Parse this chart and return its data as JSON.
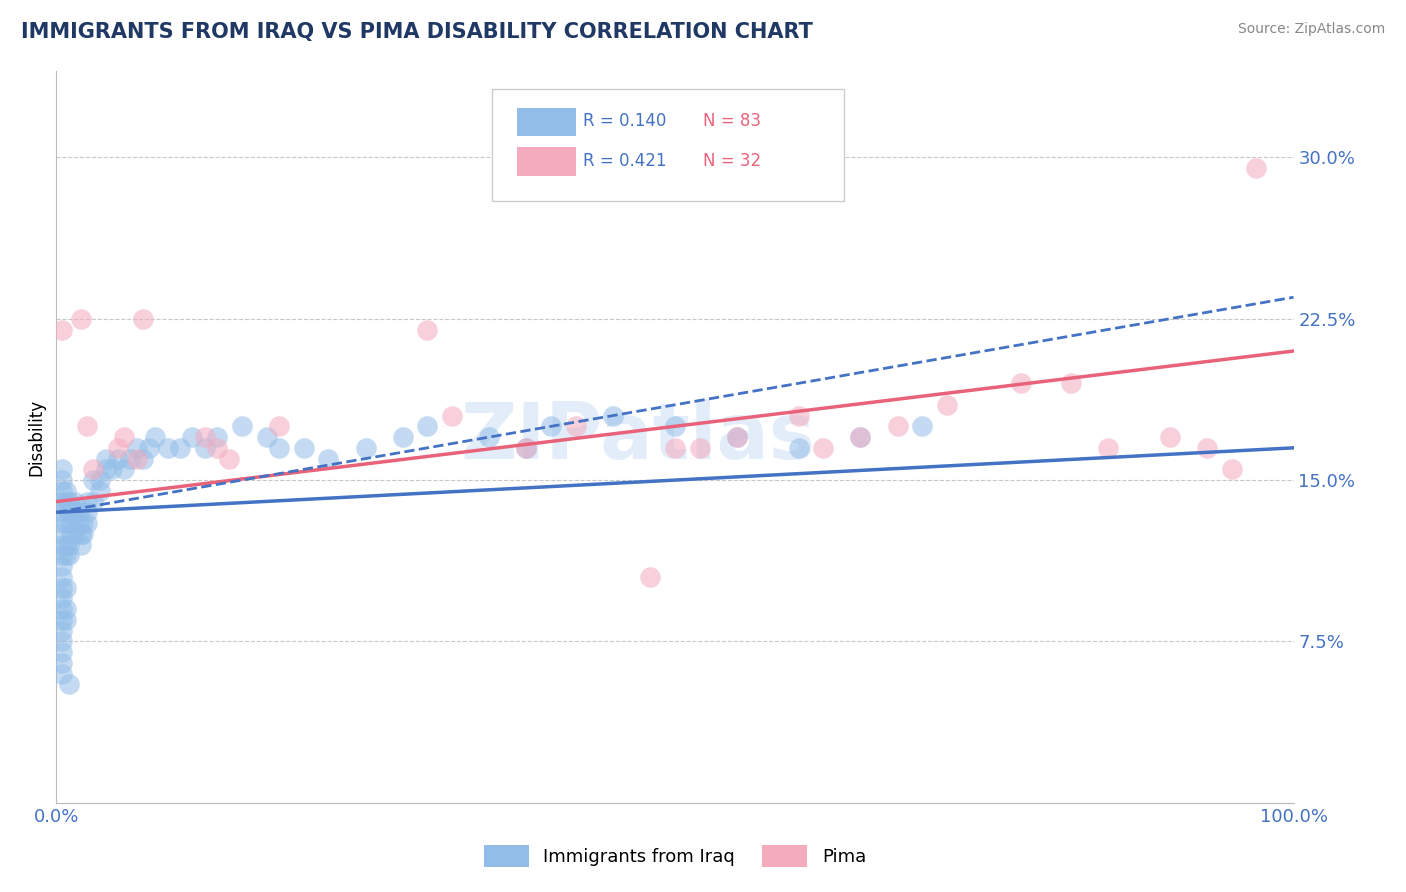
{
  "title": "IMMIGRANTS FROM IRAQ VS PIMA DISABILITY CORRELATION CHART",
  "source": "Source: ZipAtlas.com",
  "ylabel": "Disability",
  "xlim": [
    0.0,
    1.0
  ],
  "ylim": [
    0.0,
    0.34
  ],
  "yticks": [
    0.0,
    0.075,
    0.15,
    0.225,
    0.3
  ],
  "ytick_labels": [
    "",
    "7.5%",
    "15.0%",
    "22.5%",
    "30.0%"
  ],
  "xticks": [
    0.0,
    1.0
  ],
  "xtick_labels": [
    "0.0%",
    "100.0%"
  ],
  "blue_R": "0.140",
  "blue_N": "83",
  "pink_R": "0.421",
  "pink_N": "32",
  "blue_color": "#92BDE8",
  "pink_color": "#F4ABBE",
  "blue_line_color": "#4472C4",
  "pink_line_color": "#E8637A",
  "grid_color": "#C8C8C8",
  "title_color": "#1F3864",
  "axis_label_color": "#4472C4",
  "watermark": "ZIPatlas",
  "blue_scatter_x": [
    0.005,
    0.005,
    0.005,
    0.005,
    0.005,
    0.005,
    0.005,
    0.005,
    0.005,
    0.005,
    0.008,
    0.008,
    0.008,
    0.008,
    0.008,
    0.01,
    0.01,
    0.01,
    0.01,
    0.012,
    0.012,
    0.015,
    0.015,
    0.015,
    0.018,
    0.018,
    0.02,
    0.02,
    0.022,
    0.022,
    0.025,
    0.025,
    0.025,
    0.03,
    0.03,
    0.035,
    0.035,
    0.04,
    0.04,
    0.045,
    0.05,
    0.055,
    0.06,
    0.065,
    0.07,
    0.075,
    0.08,
    0.09,
    0.1,
    0.11,
    0.12,
    0.13,
    0.15,
    0.17,
    0.18,
    0.2,
    0.22,
    0.25,
    0.28,
    0.3,
    0.35,
    0.38,
    0.4,
    0.45,
    0.5,
    0.55,
    0.6,
    0.65,
    0.7,
    0.005,
    0.005,
    0.005,
    0.005,
    0.005,
    0.005,
    0.005,
    0.005,
    0.005,
    0.005,
    0.008,
    0.008,
    0.008,
    0.01
  ],
  "blue_scatter_y": [
    0.125,
    0.13,
    0.135,
    0.14,
    0.145,
    0.15,
    0.155,
    0.12,
    0.115,
    0.11,
    0.13,
    0.14,
    0.145,
    0.12,
    0.115,
    0.135,
    0.14,
    0.12,
    0.115,
    0.125,
    0.13,
    0.14,
    0.135,
    0.125,
    0.13,
    0.135,
    0.125,
    0.12,
    0.13,
    0.125,
    0.14,
    0.135,
    0.13,
    0.14,
    0.15,
    0.145,
    0.15,
    0.155,
    0.16,
    0.155,
    0.16,
    0.155,
    0.16,
    0.165,
    0.16,
    0.165,
    0.17,
    0.165,
    0.165,
    0.17,
    0.165,
    0.17,
    0.175,
    0.17,
    0.165,
    0.165,
    0.16,
    0.165,
    0.17,
    0.175,
    0.17,
    0.165,
    0.175,
    0.18,
    0.175,
    0.17,
    0.165,
    0.17,
    0.175,
    0.105,
    0.1,
    0.095,
    0.09,
    0.085,
    0.08,
    0.075,
    0.07,
    0.065,
    0.06,
    0.1,
    0.09,
    0.085,
    0.055
  ],
  "pink_scatter_x": [
    0.005,
    0.02,
    0.025,
    0.03,
    0.05,
    0.055,
    0.065,
    0.07,
    0.12,
    0.13,
    0.14,
    0.18,
    0.3,
    0.32,
    0.38,
    0.42,
    0.48,
    0.5,
    0.52,
    0.55,
    0.6,
    0.62,
    0.65,
    0.68,
    0.72,
    0.78,
    0.82,
    0.85,
    0.9,
    0.93,
    0.95,
    0.97
  ],
  "pink_scatter_y": [
    0.22,
    0.225,
    0.175,
    0.155,
    0.165,
    0.17,
    0.16,
    0.225,
    0.17,
    0.165,
    0.16,
    0.175,
    0.22,
    0.18,
    0.165,
    0.175,
    0.105,
    0.165,
    0.165,
    0.17,
    0.18,
    0.165,
    0.17,
    0.175,
    0.185,
    0.195,
    0.195,
    0.165,
    0.17,
    0.165,
    0.155,
    0.295
  ],
  "blue_solid_line": [
    0.0,
    1.0,
    0.135,
    0.165
  ],
  "pink_solid_line": [
    0.0,
    1.0,
    0.14,
    0.21
  ],
  "blue_dashed_line": [
    0.0,
    1.0,
    0.135,
    0.235
  ]
}
